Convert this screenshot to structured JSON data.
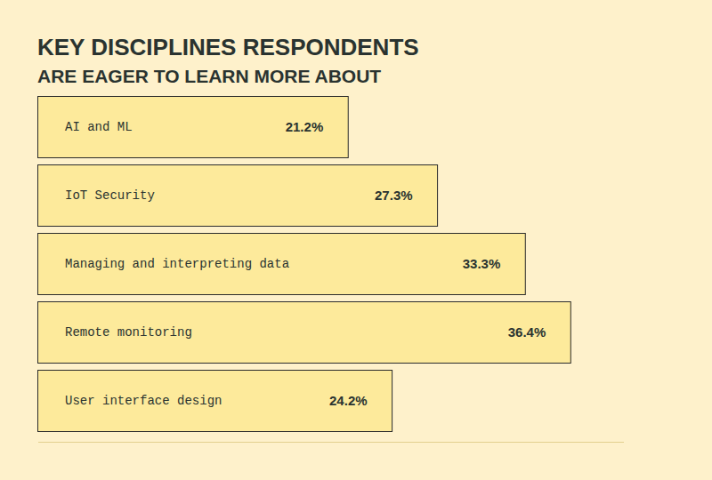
{
  "chart_data": {
    "type": "bar",
    "orientation": "horizontal",
    "title": "KEY DISCIPLINES RESPONDENTS",
    "subtitle": "ARE EAGER TO LEARN MORE ABOUT",
    "categories": [
      "AI and ML",
      "IoT Security",
      "Managing and interpreting data",
      "Remote monitoring",
      "User interface design"
    ],
    "values": [
      21.2,
      27.3,
      33.3,
      36.4,
      24.2
    ],
    "value_labels": [
      "21.2%",
      "27.3%",
      "33.3%",
      "36.4%",
      "24.2%"
    ],
    "data_labels": true,
    "color": "#fdea9b",
    "xlim": [
      0,
      40
    ],
    "tick_labels": false,
    "grid": false
  }
}
